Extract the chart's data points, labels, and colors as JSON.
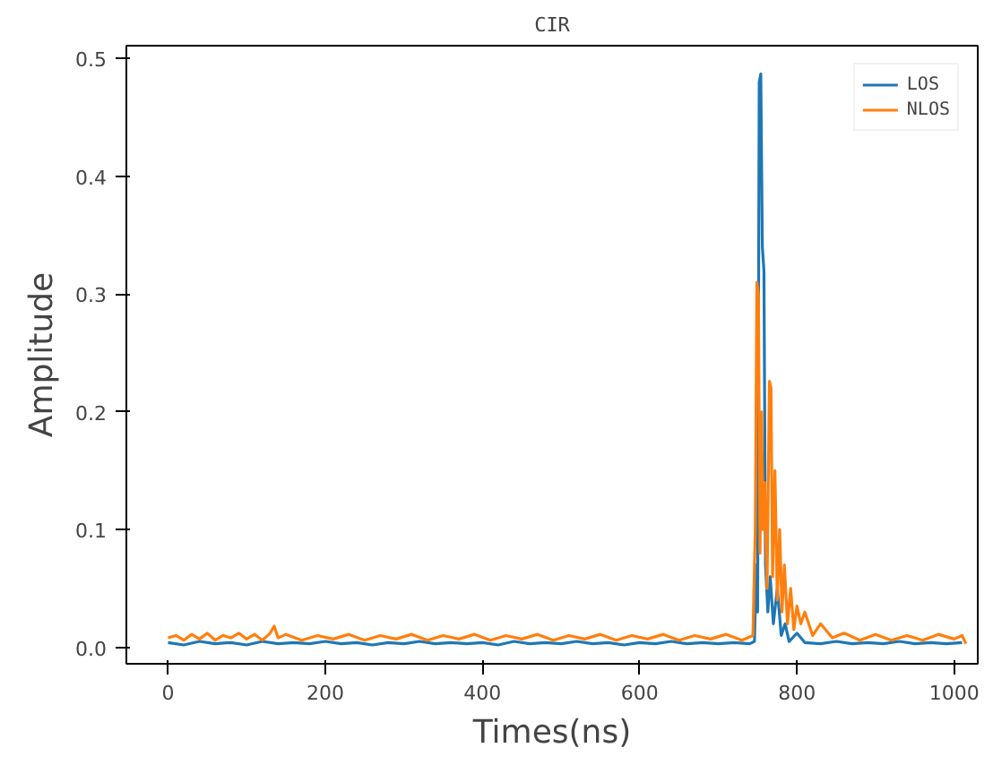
{
  "chart_data": {
    "type": "line",
    "title": "CIR",
    "xlabel": "Times(ns)",
    "ylabel": "Amplitude",
    "xlim": [
      -53,
      1030
    ],
    "ylim": [
      -0.014,
      0.511
    ],
    "xticks": [
      0,
      200,
      400,
      600,
      800,
      1000
    ],
    "yticks": [
      {
        "value": 0,
        "label": "0.0"
      },
      0.1,
      0.2,
      0.3,
      0.4,
      0.5
    ],
    "grid": false,
    "legend": "top right",
    "line_style": "solid",
    "marker": "none",
    "series": [
      {
        "name": "LOS",
        "color": "#1f77b4",
        "x": [
          0,
          20,
          40,
          60,
          80,
          100,
          120,
          140,
          160,
          180,
          200,
          220,
          240,
          260,
          280,
          300,
          320,
          340,
          360,
          380,
          400,
          420,
          440,
          460,
          480,
          500,
          520,
          540,
          560,
          580,
          600,
          620,
          640,
          660,
          680,
          700,
          720,
          740,
          746,
          748,
          750,
          752,
          754,
          756,
          758,
          760,
          763,
          766,
          770,
          775,
          780,
          785,
          790,
          800,
          810,
          830,
          850,
          870,
          890,
          910,
          930,
          950,
          970,
          990,
          1010
        ],
        "values": [
          0.004,
          0.002,
          0.005,
          0.003,
          0.004,
          0.002,
          0.005,
          0.003,
          0.004,
          0.003,
          0.005,
          0.003,
          0.004,
          0.002,
          0.004,
          0.003,
          0.005,
          0.003,
          0.004,
          0.003,
          0.004,
          0.002,
          0.005,
          0.003,
          0.004,
          0.003,
          0.005,
          0.003,
          0.004,
          0.002,
          0.004,
          0.003,
          0.005,
          0.003,
          0.004,
          0.003,
          0.004,
          0.003,
          0.005,
          0.07,
          0.03,
          0.48,
          0.487,
          0.34,
          0.32,
          0.07,
          0.03,
          0.06,
          0.02,
          0.05,
          0.01,
          0.02,
          0.005,
          0.012,
          0.004,
          0.003,
          0.005,
          0.003,
          0.004,
          0.003,
          0.005,
          0.003,
          0.004,
          0.003,
          0.004
        ]
      },
      {
        "name": "NLOS",
        "color": "#ff7f0e",
        "x": [
          0,
          10,
          20,
          30,
          40,
          50,
          60,
          70,
          80,
          90,
          100,
          110,
          120,
          130,
          135,
          140,
          150,
          170,
          190,
          210,
          230,
          250,
          270,
          290,
          310,
          330,
          350,
          370,
          390,
          410,
          430,
          450,
          470,
          490,
          510,
          530,
          550,
          570,
          590,
          610,
          630,
          650,
          670,
          690,
          710,
          730,
          744,
          747,
          749,
          751,
          753,
          755,
          757,
          759,
          762,
          765,
          767,
          769,
          772,
          775,
          778,
          781,
          784,
          788,
          792,
          796,
          800,
          805,
          810,
          820,
          830,
          845,
          860,
          880,
          900,
          920,
          940,
          960,
          980,
          1000,
          1010,
          1015
        ],
        "values": [
          0.008,
          0.01,
          0.006,
          0.011,
          0.007,
          0.012,
          0.006,
          0.01,
          0.008,
          0.012,
          0.007,
          0.011,
          0.006,
          0.012,
          0.018,
          0.008,
          0.011,
          0.006,
          0.01,
          0.007,
          0.011,
          0.006,
          0.01,
          0.007,
          0.011,
          0.006,
          0.01,
          0.007,
          0.011,
          0.006,
          0.01,
          0.007,
          0.011,
          0.006,
          0.01,
          0.007,
          0.011,
          0.006,
          0.01,
          0.007,
          0.011,
          0.006,
          0.01,
          0.007,
          0.011,
          0.006,
          0.01,
          0.1,
          0.31,
          0.3,
          0.08,
          0.2,
          0.1,
          0.14,
          0.05,
          0.226,
          0.22,
          0.06,
          0.15,
          0.04,
          0.1,
          0.03,
          0.07,
          0.02,
          0.05,
          0.015,
          0.035,
          0.02,
          0.03,
          0.01,
          0.02,
          0.008,
          0.012,
          0.006,
          0.011,
          0.006,
          0.01,
          0.006,
          0.011,
          0.007,
          0.01,
          0.003
        ]
      }
    ]
  }
}
